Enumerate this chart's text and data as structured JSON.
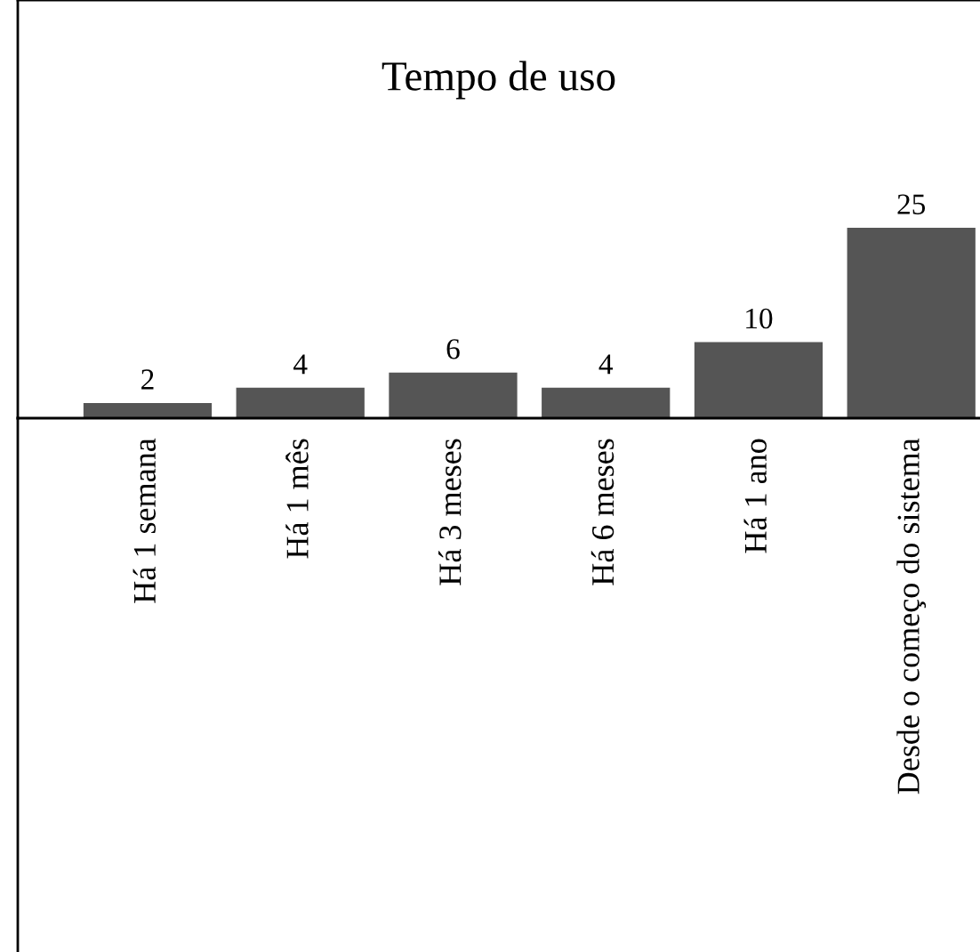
{
  "chart_data": {
    "type": "bar",
    "title": "Tempo de uso",
    "categories": [
      "Há 1 semana",
      "Há 1 mês",
      "Há 3 meses",
      "Há 6 meses",
      "Há 1 ano",
      "Desde o começo do sistema"
    ],
    "values": [
      2,
      4,
      6,
      4,
      10,
      25
    ],
    "color": "#555555",
    "data_labels": true,
    "tick_labels": "x"
  }
}
